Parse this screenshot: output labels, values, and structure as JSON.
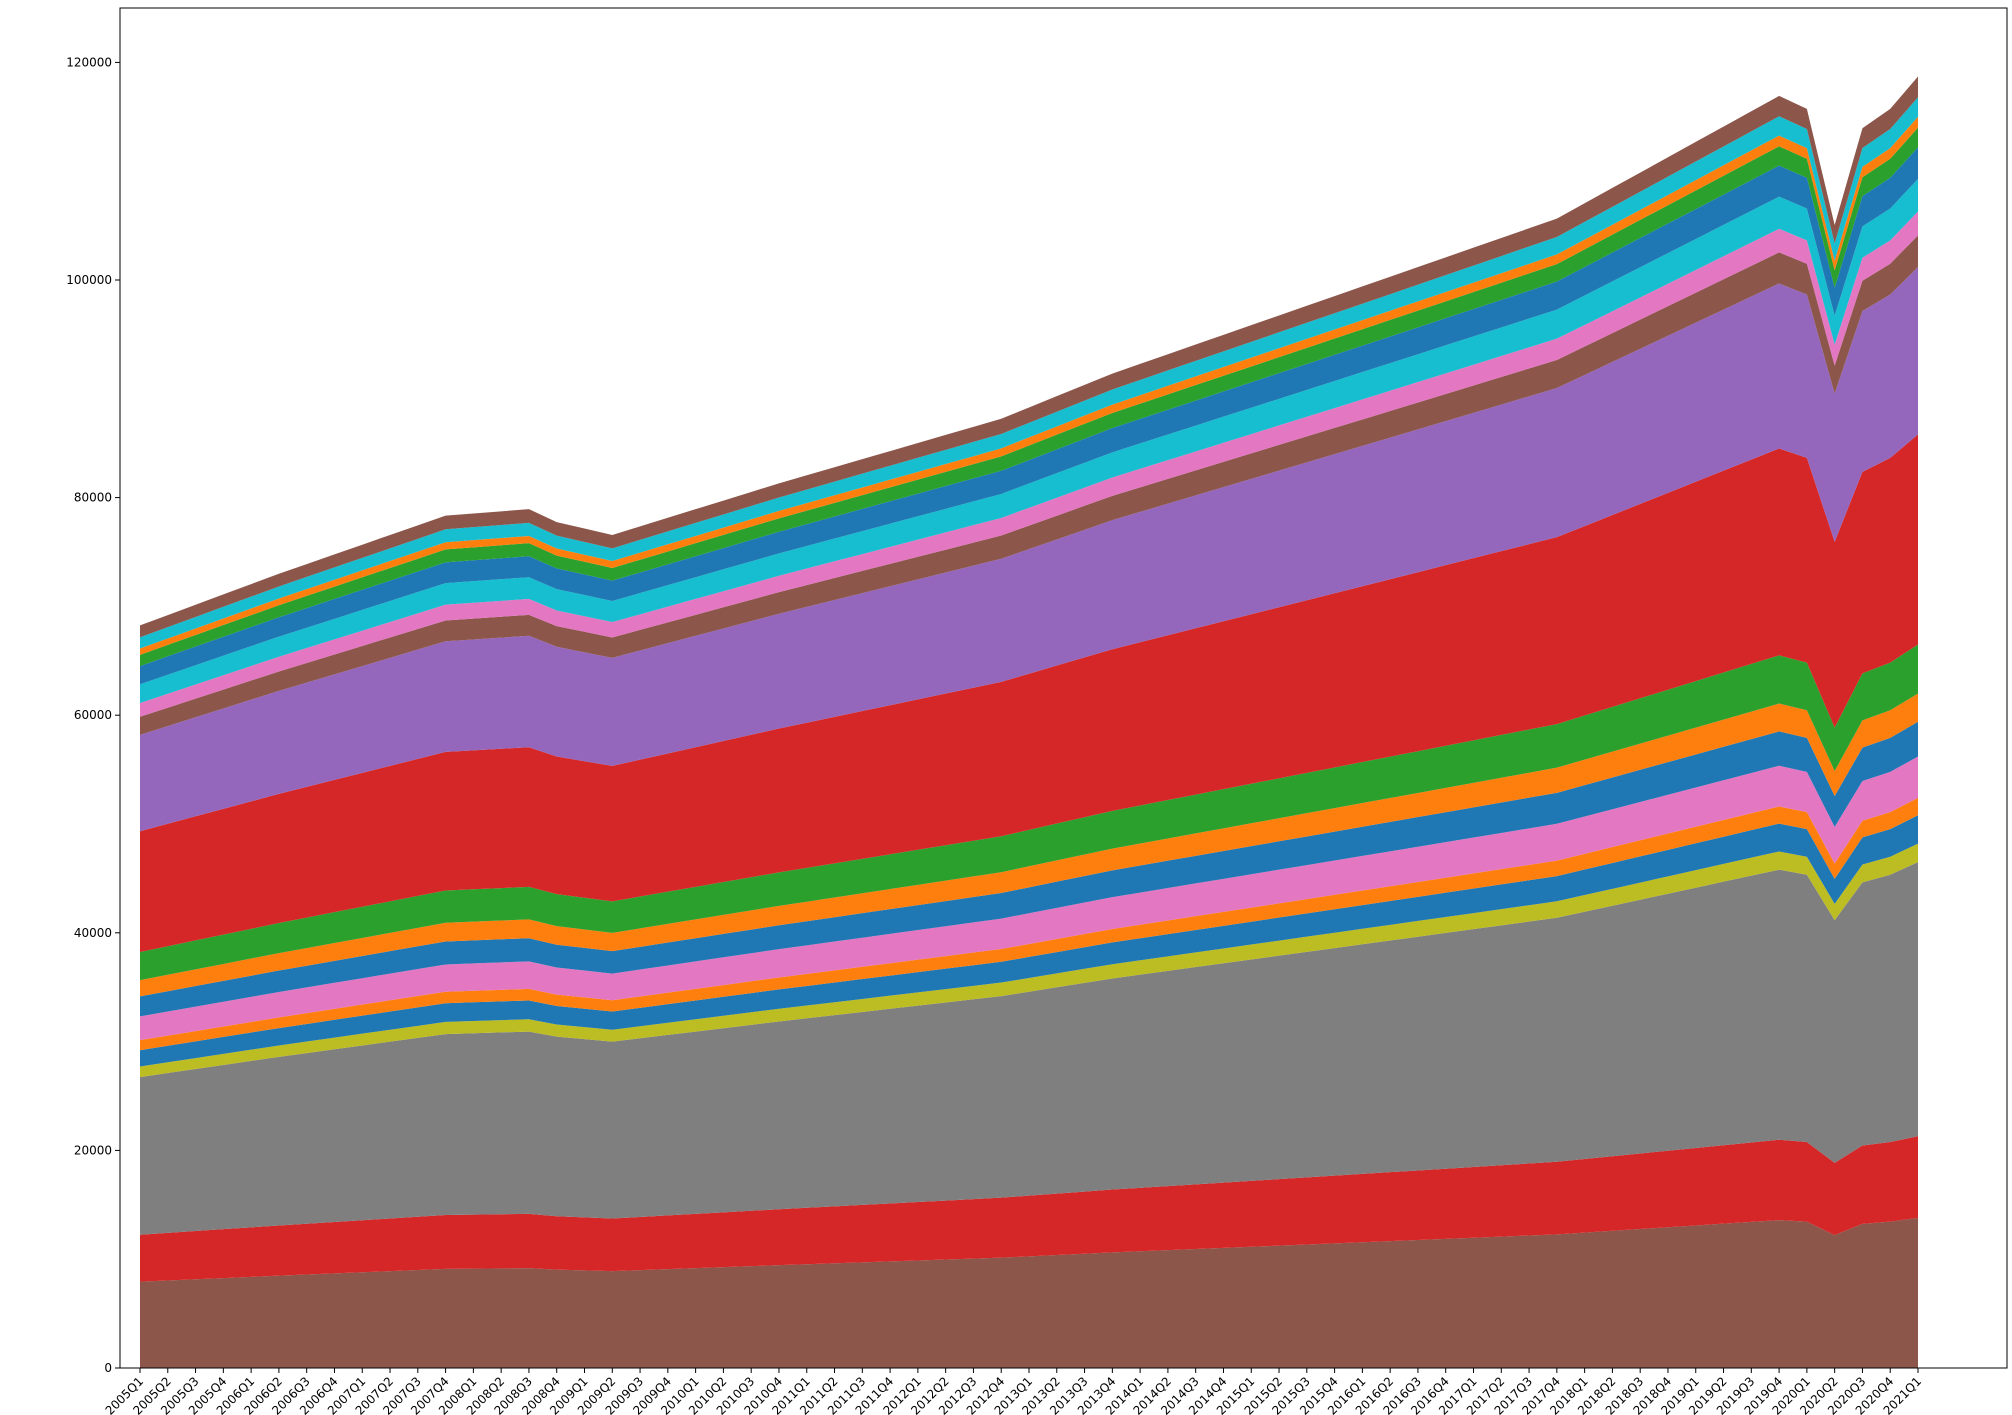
{
  "chart_data": {
    "type": "area",
    "stacked": true,
    "title": "",
    "xlabel": "",
    "ylabel": "",
    "legend": "none",
    "grid": false,
    "ylim": [
      0,
      125000
    ],
    "yticks": [
      0,
      20000,
      40000,
      60000,
      80000,
      100000,
      120000
    ],
    "ytick_labels": [
      "0",
      "20000",
      "40000",
      "60000",
      "80000",
      "100000",
      "120000"
    ],
    "x": [
      "2005Q1",
      "2005Q2",
      "2005Q3",
      "2005Q4",
      "2006Q1",
      "2006Q2",
      "2006Q3",
      "2006Q4",
      "2007Q1",
      "2007Q2",
      "2007Q3",
      "2007Q4",
      "2008Q1",
      "2008Q2",
      "2008Q3",
      "2008Q4",
      "2009Q1",
      "2009Q2",
      "2009Q3",
      "2009Q4",
      "2010Q1",
      "2010Q2",
      "2010Q3",
      "2010Q4",
      "2011Q1",
      "2011Q2",
      "2011Q3",
      "2011Q4",
      "2012Q1",
      "2012Q2",
      "2012Q3",
      "2012Q4",
      "2013Q1",
      "2013Q2",
      "2013Q3",
      "2013Q4",
      "2014Q1",
      "2014Q2",
      "2014Q3",
      "2014Q4",
      "2015Q1",
      "2015Q2",
      "2015Q3",
      "2015Q4",
      "2016Q1",
      "2016Q2",
      "2016Q3",
      "2016Q4",
      "2017Q1",
      "2017Q2",
      "2017Q3",
      "2017Q4",
      "2018Q1",
      "2018Q2",
      "2018Q3",
      "2018Q4",
      "2019Q1",
      "2019Q2",
      "2019Q3",
      "2019Q4",
      "2020Q1",
      "2020Q2",
      "2020Q3",
      "2020Q4",
      "2021Q1"
    ],
    "bands": [
      {
        "color": "#8c564b",
        "base": 0,
        "end": 13800
      },
      {
        "color": "#d62728",
        "base": 13800,
        "end": 21300
      },
      {
        "color": "#7f7f7f",
        "base": 21300,
        "end": 46500
      },
      {
        "color": "#bcbd22",
        "base": 46500,
        "end": 48200
      },
      {
        "color": "#1f77b4",
        "base": 48200,
        "end": 50800
      },
      {
        "color": "#ff7f0e",
        "base": 50800,
        "end": 52400
      },
      {
        "color": "#e377c2",
        "base": 52400,
        "end": 56200
      },
      {
        "color": "#1f77b4",
        "base": 56200,
        "end": 59400
      },
      {
        "color": "#ff7f0e",
        "base": 59400,
        "end": 62000
      },
      {
        "color": "#2ca02c",
        "base": 62000,
        "end": 66500
      },
      {
        "color": "#d62728",
        "base": 66500,
        "end": 85800
      },
      {
        "color": "#9467bd",
        "base": 85800,
        "end": 101200
      },
      {
        "color": "#8c564b",
        "base": 101200,
        "end": 104100
      },
      {
        "color": "#e377c2",
        "base": 104100,
        "end": 106300
      },
      {
        "color": "#17becf",
        "base": 106300,
        "end": 109300
      },
      {
        "color": "#1f77b4",
        "base": 109300,
        "end": 112200
      },
      {
        "color": "#2ca02c",
        "base": 112200,
        "end": 114000
      },
      {
        "color": "#ff7f0e",
        "base": 114000,
        "end": 115000
      },
      {
        "color": "#17becf",
        "base": 115000,
        "end": 116800
      },
      {
        "color": "#8c564b",
        "base": 116800,
        "end": 118700
      }
    ]
  }
}
